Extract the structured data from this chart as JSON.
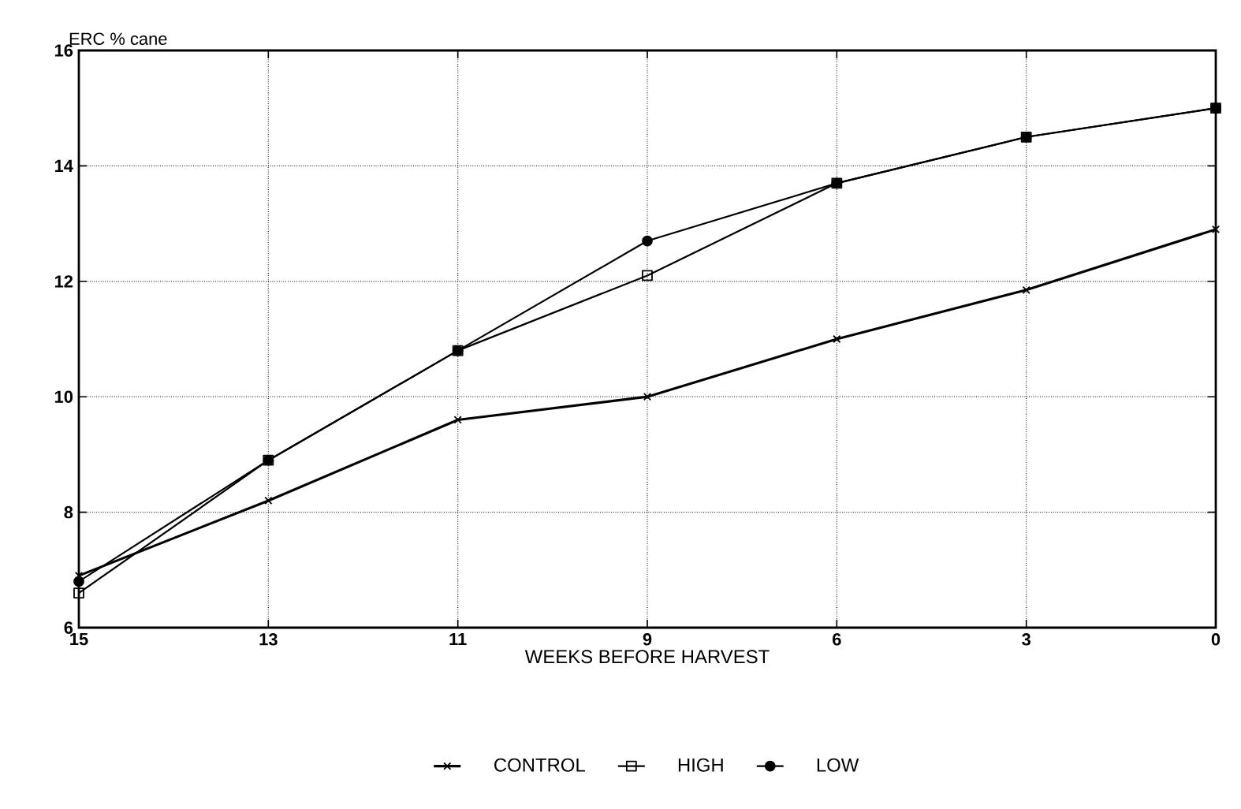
{
  "chart_data": {
    "type": "line",
    "ylabel": "ERC % cane",
    "xlabel": "WEEKS BEFORE HARVEST",
    "categories": [
      "15",
      "13",
      "11",
      "9",
      "6",
      "3",
      "0"
    ],
    "ylim": [
      6,
      16
    ],
    "yticks": [
      6,
      8,
      10,
      12,
      14,
      16
    ],
    "grid": true,
    "legend": "bottom",
    "series": [
      {
        "name": "CONTROL",
        "color": "#000000",
        "marker": "cross",
        "values": [
          6.9,
          8.2,
          9.6,
          10.0,
          11.0,
          11.85,
          12.9
        ]
      },
      {
        "name": "HIGH",
        "color": "#000000",
        "marker": "square",
        "values": [
          6.6,
          8.9,
          10.8,
          12.1,
          13.7,
          14.5,
          15.0
        ]
      },
      {
        "name": "LOW",
        "color": "#000000",
        "marker": "circle",
        "values": [
          6.8,
          8.9,
          10.8,
          12.7,
          13.7,
          14.5,
          15.0
        ]
      }
    ]
  }
}
